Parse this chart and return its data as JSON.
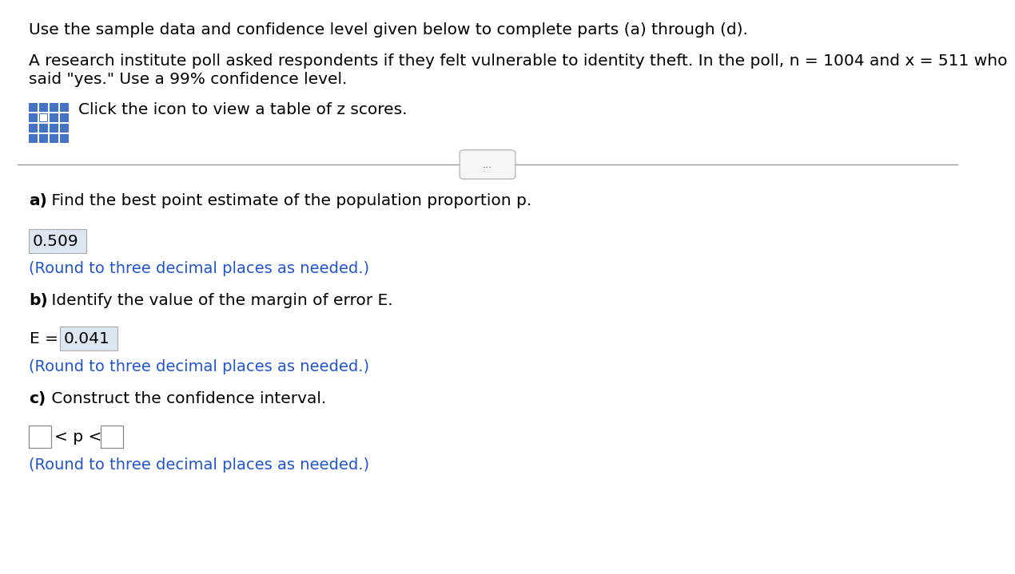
{
  "bg_color": "#ffffff",
  "text_color": "#000000",
  "blue_color": "#2255cc",
  "highlight_bg": "#dce6f1",
  "line1": "Use the sample data and confidence level given below to complete parts (a) through (d).",
  "line2a": "A research institute poll asked respondents if they felt vulnerable to identity theft. In the poll, n = 1004 and x = 511 who",
  "line2b": "said \"yes.\" Use a 99% confidence level.",
  "line3": "Click the icon to view a table of z scores.",
  "part_a_bold": "a)",
  "part_a_rest": " Find the best point estimate of the population proportion p.",
  "part_a_answer": "0.509",
  "part_a_note": "(Round to three decimal places as needed.)",
  "part_b_bold": "b)",
  "part_b_rest": " Identify the value of the margin of error E.",
  "part_b_e_label": "E = ",
  "part_b_answer": "0.041",
  "part_b_note": "(Round to three decimal places as needed.)",
  "part_c_bold": "c)",
  "part_c_rest": " Construct the confidence interval.",
  "part_c_middle": "< p <",
  "part_c_note": "(Round to three decimal places as needed.)",
  "separator_button_text": "...",
  "fs_main": 14.5,
  "fs_note": 14.0
}
